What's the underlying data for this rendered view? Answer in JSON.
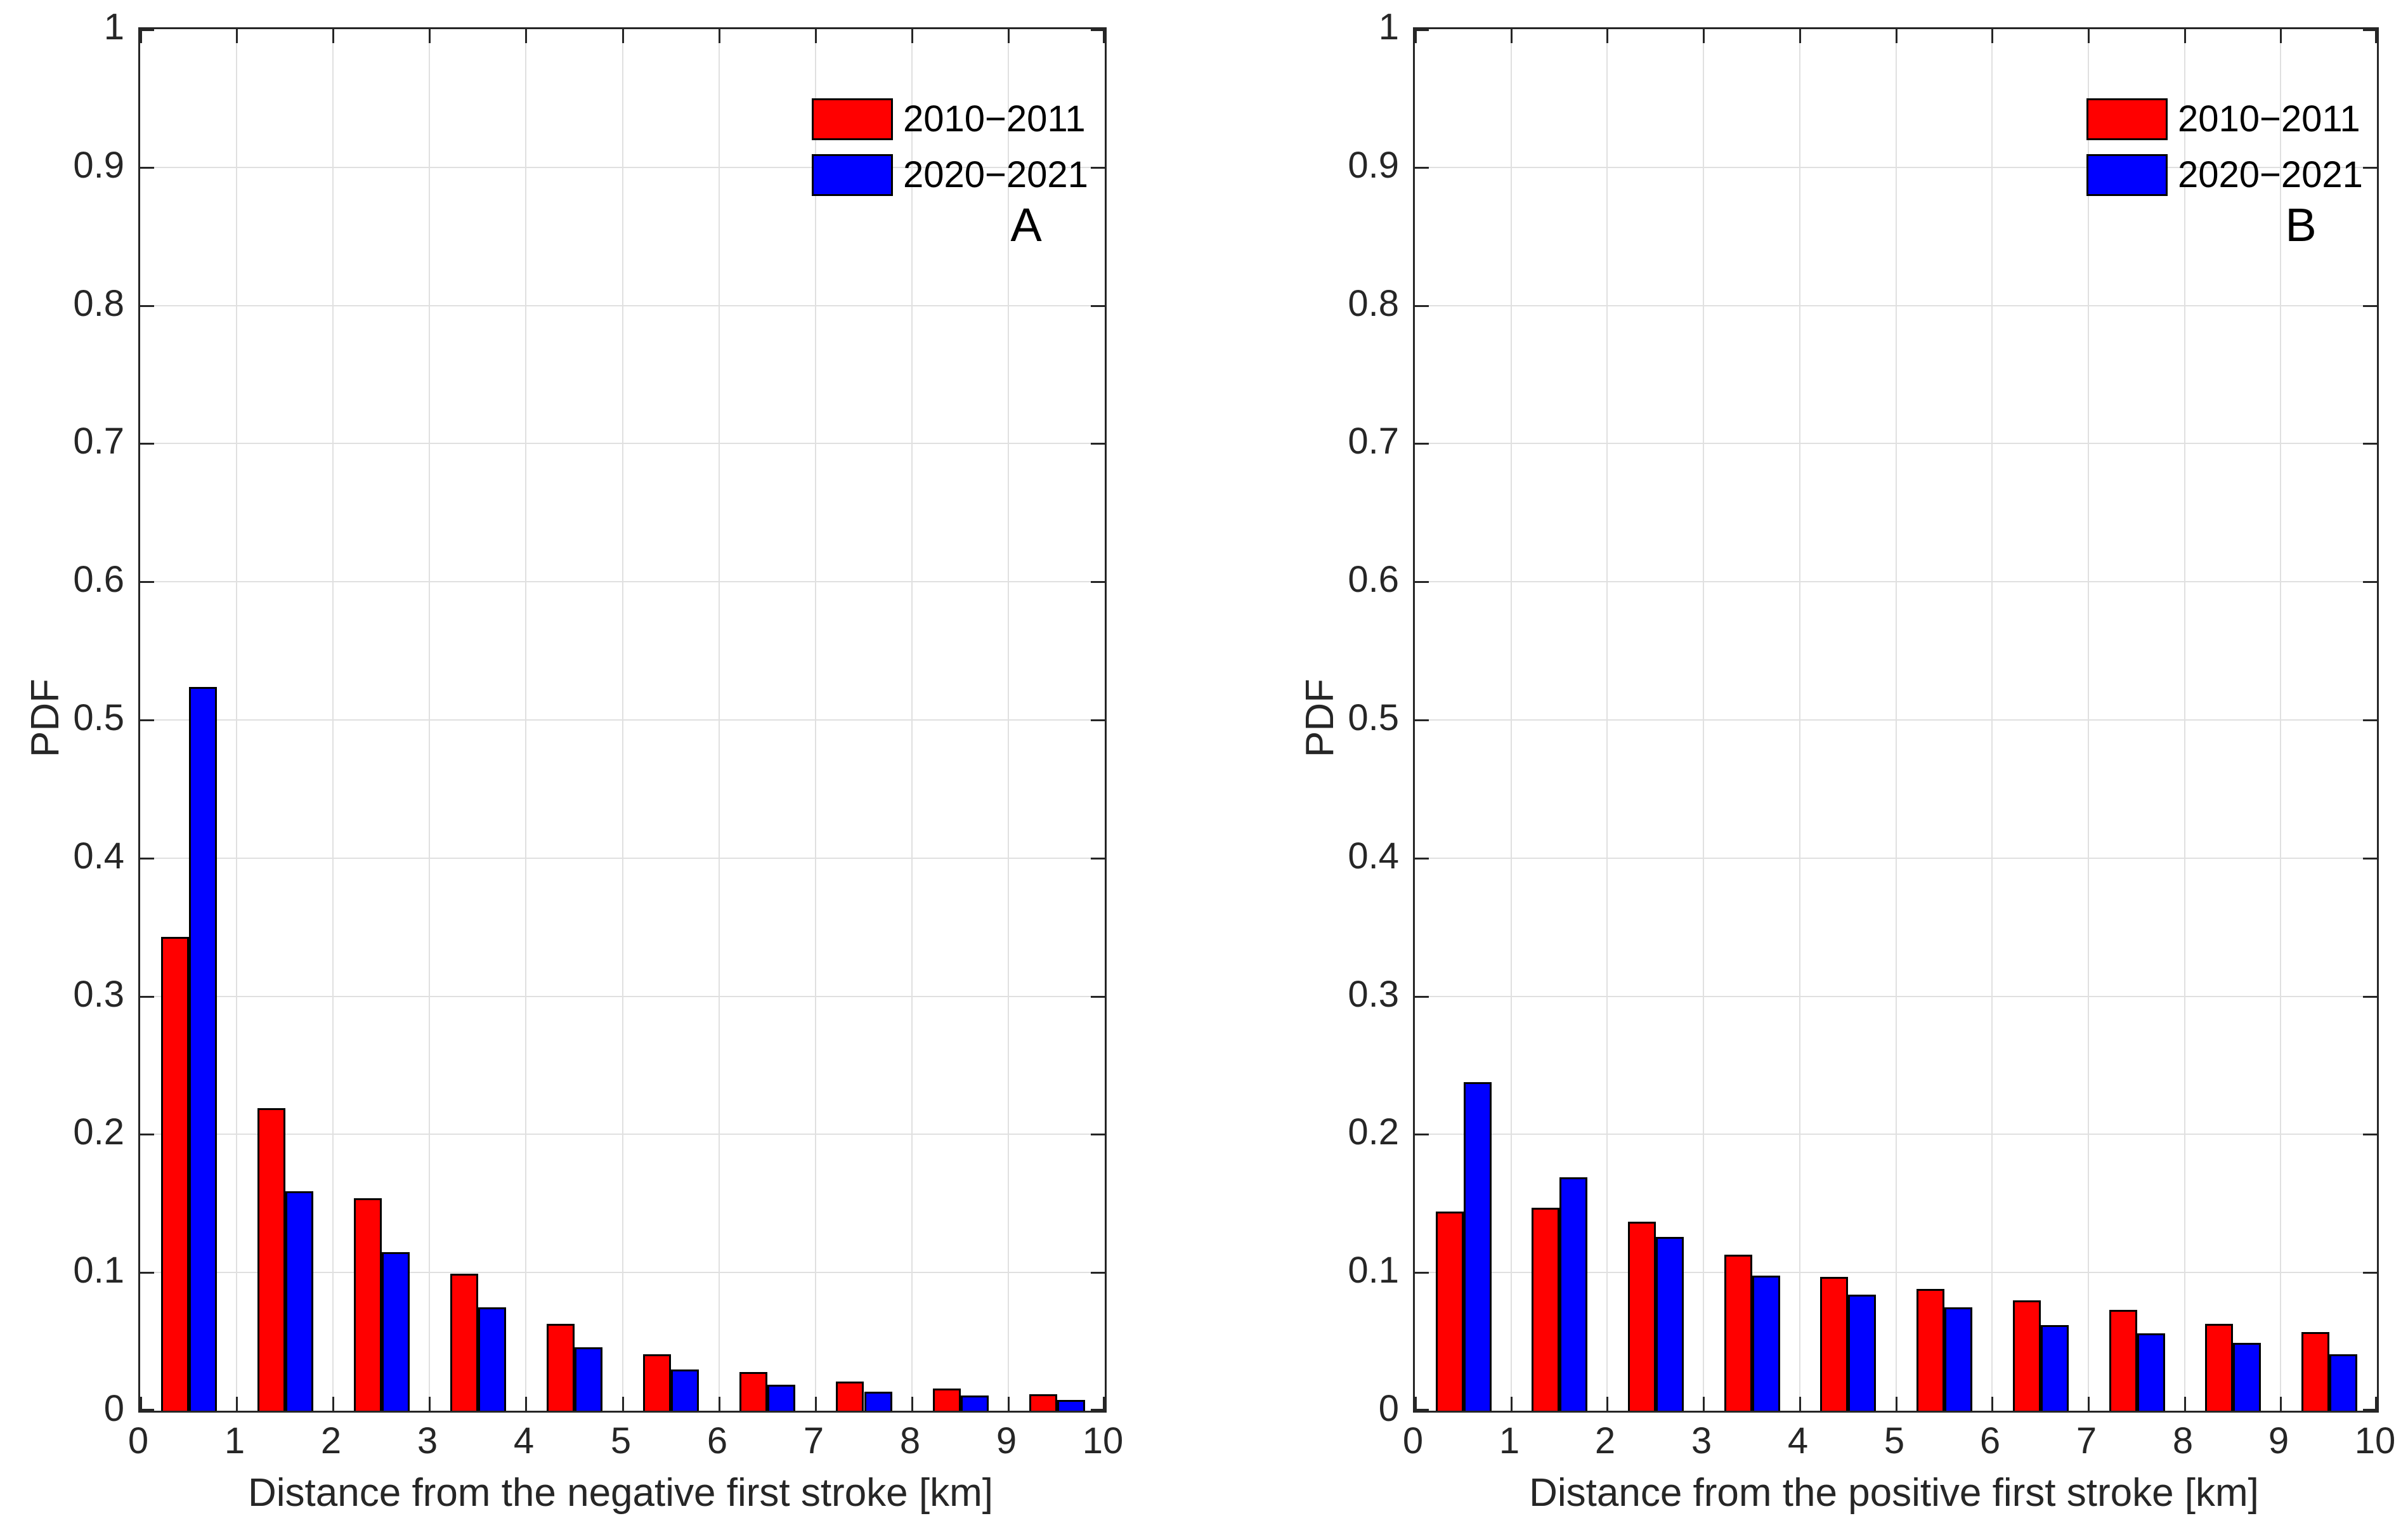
{
  "styles": {
    "axis_color": "#262626",
    "grid_color": "#e0e0e0",
    "bar_edge_color": "#000000",
    "background": "#ffffff",
    "red": "#ff0000",
    "blue": "#0000ff"
  },
  "chart_data": [
    {
      "type": "bar",
      "panel_label": "A",
      "xlabel": "Distance from the negative first stroke [km]",
      "ylabel": "PDF",
      "categories": [
        0.5,
        1.5,
        2.5,
        3.5,
        4.5,
        5.5,
        6.5,
        7.5,
        8.5,
        9.5
      ],
      "series": [
        {
          "name": "2010−2011",
          "color": "#ff0000",
          "values": [
            0.343,
            0.219,
            0.154,
            0.099,
            0.063,
            0.041,
            0.028,
            0.021,
            0.016,
            0.012
          ]
        },
        {
          "name": "2020−2021",
          "color": "#0000ff",
          "values": [
            0.524,
            0.159,
            0.115,
            0.075,
            0.046,
            0.03,
            0.019,
            0.014,
            0.011,
            0.008
          ]
        }
      ],
      "xlim": [
        0,
        10
      ],
      "ylim": [
        0,
        1
      ],
      "xticks": [
        0,
        1,
        2,
        3,
        4,
        5,
        6,
        7,
        8,
        9,
        10
      ],
      "yticks": [
        0,
        0.1,
        0.2,
        0.3,
        0.4,
        0.5,
        0.6,
        0.7,
        0.8,
        0.9,
        1
      ],
      "ytick_labels": [
        "0",
        "0.1",
        "0.2",
        "0.3",
        "0.4",
        "0.5",
        "0.6",
        "0.7",
        "0.8",
        "0.9",
        "1"
      ],
      "grid": true,
      "legend_position": "top-right"
    },
    {
      "type": "bar",
      "panel_label": "B",
      "xlabel": "Distance from the positive first stroke [km]",
      "ylabel": "PDF",
      "categories": [
        0.5,
        1.5,
        2.5,
        3.5,
        4.5,
        5.5,
        6.5,
        7.5,
        8.5,
        9.5
      ],
      "series": [
        {
          "name": "2010−2011",
          "color": "#ff0000",
          "values": [
            0.144,
            0.147,
            0.137,
            0.113,
            0.097,
            0.088,
            0.08,
            0.073,
            0.063,
            0.057
          ]
        },
        {
          "name": "2020−2021",
          "color": "#0000ff",
          "values": [
            0.238,
            0.169,
            0.126,
            0.098,
            0.084,
            0.075,
            0.062,
            0.056,
            0.049,
            0.041
          ]
        }
      ],
      "xlim": [
        0,
        10
      ],
      "ylim": [
        0,
        1
      ],
      "xticks": [
        0,
        1,
        2,
        3,
        4,
        5,
        6,
        7,
        8,
        9,
        10
      ],
      "yticks": [
        0,
        0.1,
        0.2,
        0.3,
        0.4,
        0.5,
        0.6,
        0.7,
        0.8,
        0.9,
        1
      ],
      "ytick_labels": [
        "0",
        "0.1",
        "0.2",
        "0.3",
        "0.4",
        "0.5",
        "0.6",
        "0.7",
        "0.8",
        "0.9",
        "1"
      ],
      "grid": true,
      "legend_position": "top-right"
    }
  ]
}
